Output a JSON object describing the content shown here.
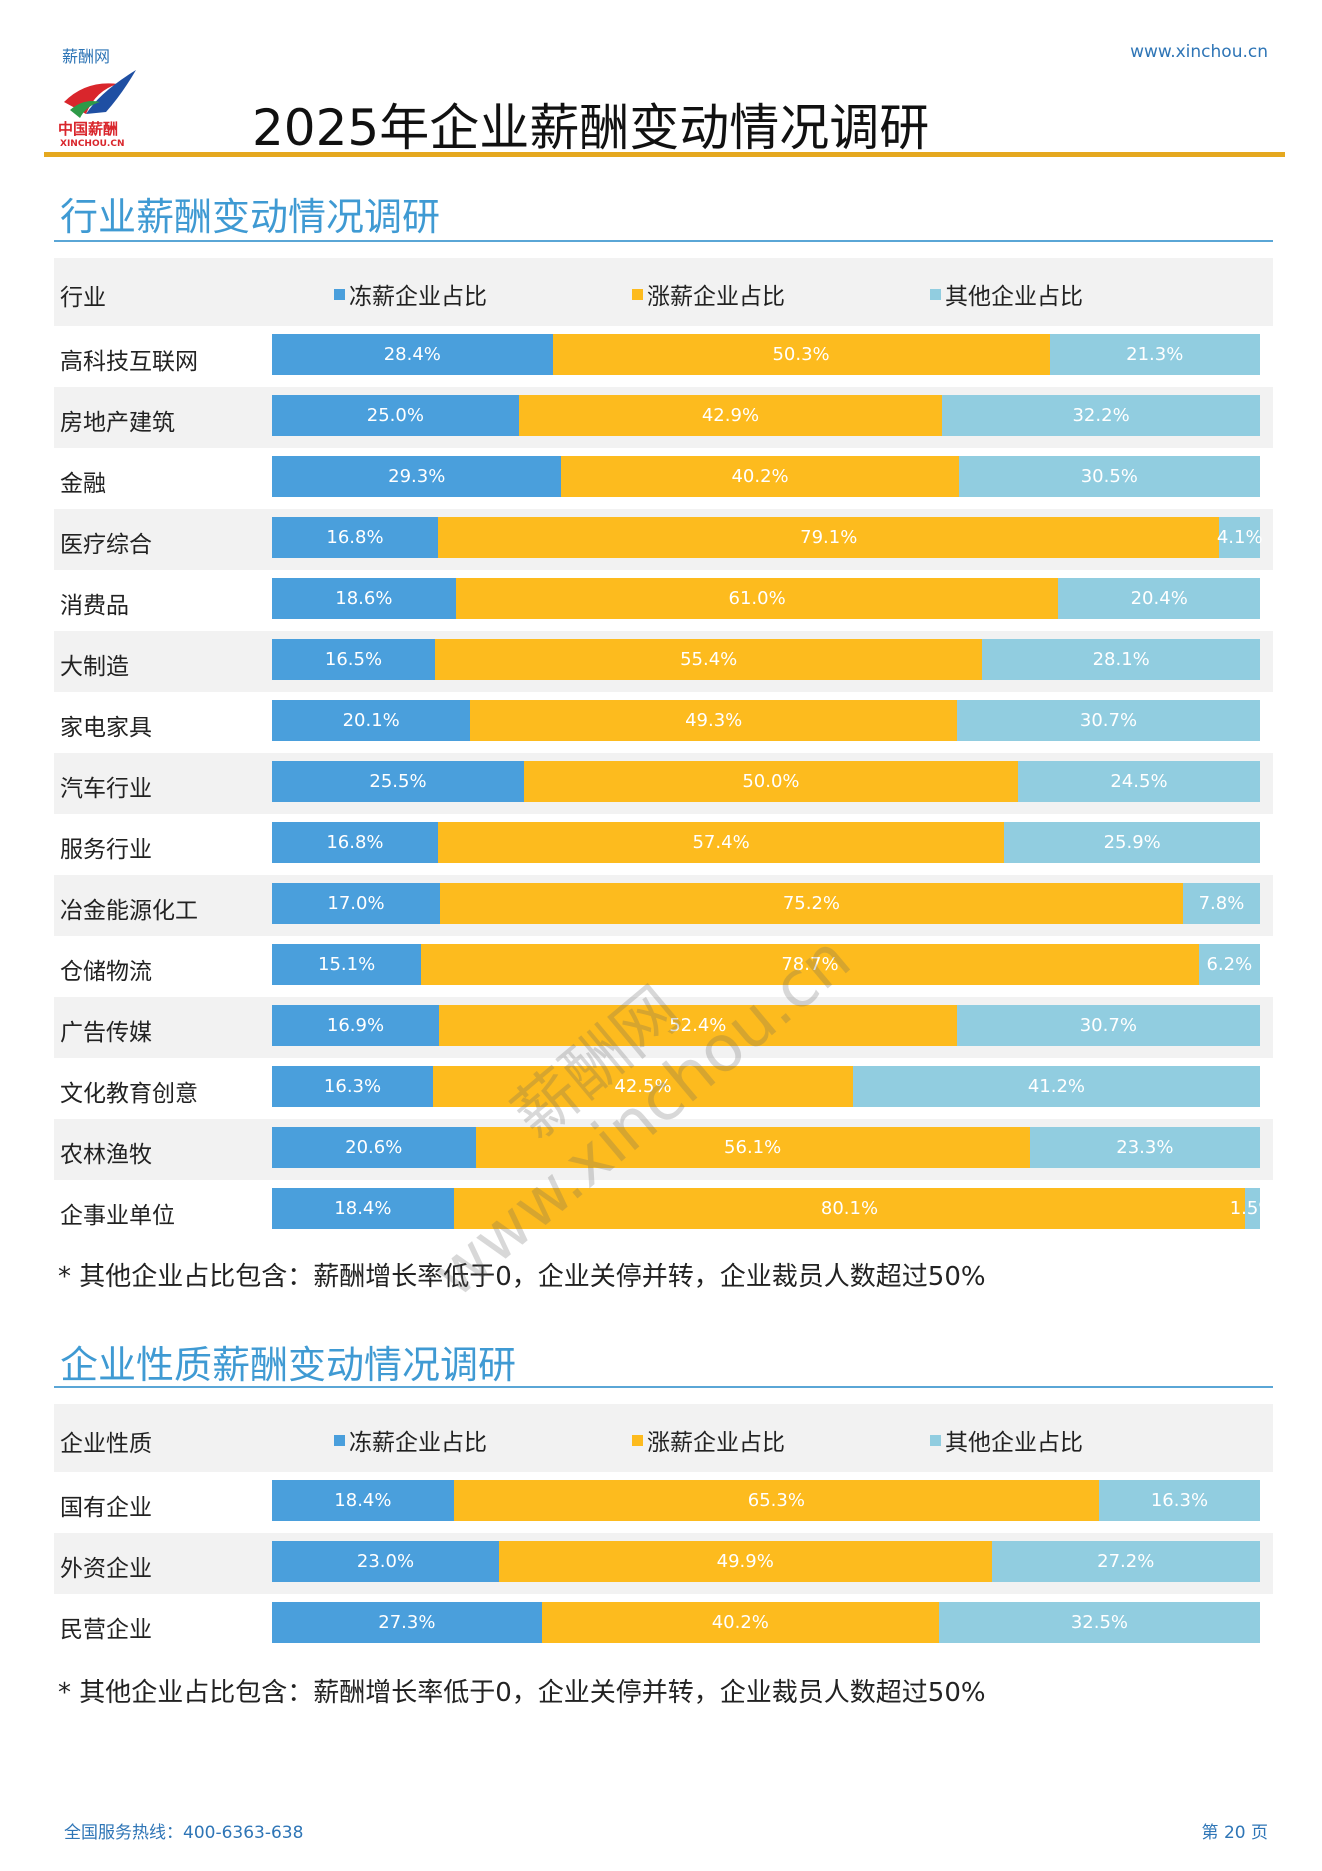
{
  "header": {
    "brand_name": "薪酬网",
    "site_url": "www.xinchou.cn",
    "logo_text_cn": "中国薪酬",
    "logo_text_en": "XINCHOU.CN",
    "doc_title": "2025年企业薪酬变动情况调研"
  },
  "colors": {
    "freeze": "#4a9fdc",
    "raise": "#fdbb1e",
    "other": "#91cde0",
    "title_rule": "#e5a81f",
    "section_title": "#3f9ad3"
  },
  "section1": {
    "title": "行业薪酬变动情况调研",
    "footnote": "* 其他企业占比包含：薪酬增长率低于0，企业关停并转，企业裁员人数超过50%"
  },
  "section2": {
    "title": "企业性质薪酬变动情况调研",
    "footnote": "* 其他企业占比包含：薪酬增长率低于0，企业关停并转，企业裁员人数超过50%"
  },
  "watermark": {
    "line1": "薪酬网",
    "line2": "www.xinchou.cn"
  },
  "footer": {
    "hotline": "全国服务热线：400-6363-638",
    "page_number": "第 20 页"
  },
  "chart_data": [
    {
      "type": "bar",
      "stacked": true,
      "orientation": "horizontal",
      "category_header": "行业",
      "categories": [
        "高科技互联网",
        "房地产建筑",
        "金融",
        "医疗综合",
        "消费品",
        "大制造",
        "家电家具",
        "汽车行业",
        "服务行业",
        "冶金能源化工",
        "仓储物流",
        "广告传媒",
        "文化教育创意",
        "农林渔牧",
        "企事业单位"
      ],
      "series": [
        {
          "name": "冻薪企业占比",
          "values": [
            28.4,
            25.0,
            29.3,
            16.8,
            18.6,
            16.5,
            20.1,
            25.5,
            16.8,
            17.0,
            15.1,
            16.9,
            16.3,
            20.6,
            18.4
          ]
        },
        {
          "name": "涨薪企业占比",
          "values": [
            50.3,
            42.9,
            40.2,
            79.1,
            61.0,
            55.4,
            49.3,
            50.0,
            57.4,
            75.2,
            78.7,
            52.4,
            42.5,
            56.1,
            80.1
          ]
        },
        {
          "name": "其他企业占比",
          "values": [
            21.3,
            32.2,
            30.5,
            4.1,
            20.4,
            28.1,
            30.7,
            24.5,
            25.9,
            7.8,
            6.2,
            30.7,
            41.2,
            23.3,
            1.5
          ]
        }
      ],
      "unit": "%",
      "legend_position": "top",
      "xlim": [
        0,
        100
      ]
    },
    {
      "type": "bar",
      "stacked": true,
      "orientation": "horizontal",
      "category_header": "企业性质",
      "categories": [
        "国有企业",
        "外资企业",
        "民营企业"
      ],
      "series": [
        {
          "name": "冻薪企业占比",
          "values": [
            18.4,
            23.0,
            27.3
          ]
        },
        {
          "name": "涨薪企业占比",
          "values": [
            65.3,
            49.9,
            40.2
          ]
        },
        {
          "name": "其他企业占比",
          "values": [
            16.3,
            27.2,
            32.5
          ]
        }
      ],
      "unit": "%",
      "legend_position": "top",
      "xlim": [
        0,
        100
      ]
    }
  ]
}
